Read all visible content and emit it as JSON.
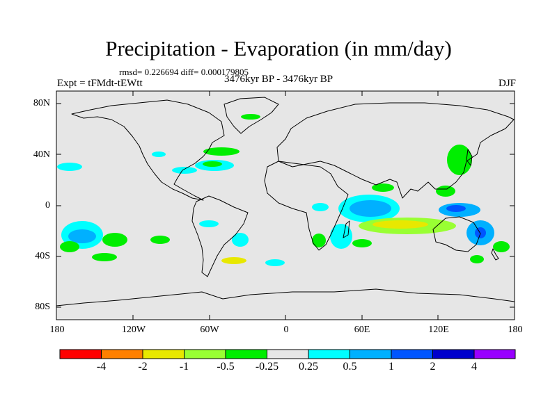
{
  "title": "Precipitation - Evaporation (in mm/day)",
  "stats": "rmsd= 0.226694  diff= 0.000179805",
  "experiment": "Expt = tFMdt-tEWtt",
  "period": "3476kyr BP - 3476kyr BP",
  "season": "DJF",
  "lat_labels": [
    "80N",
    "40N",
    "0",
    "40S",
    "80S"
  ],
  "lon_labels": [
    "180",
    "120W",
    "60W",
    "0",
    "60E",
    "120E",
    "180"
  ],
  "colorbar": {
    "labels": [
      "-4",
      "-2",
      "-1",
      "-0.5",
      "-0.25",
      "0.25",
      "0.5",
      "1",
      "2",
      "4"
    ],
    "colors": [
      "#ff0000",
      "#ff8000",
      "#e8e800",
      "#99ff33",
      "#00ee00",
      "#e6e6e6",
      "#00ffff",
      "#00b0ff",
      "#0055ff",
      "#0000cc",
      "#9900ff"
    ]
  },
  "colors": {
    "ocean": "#e6e6e6",
    "coast": "#000000"
  }
}
